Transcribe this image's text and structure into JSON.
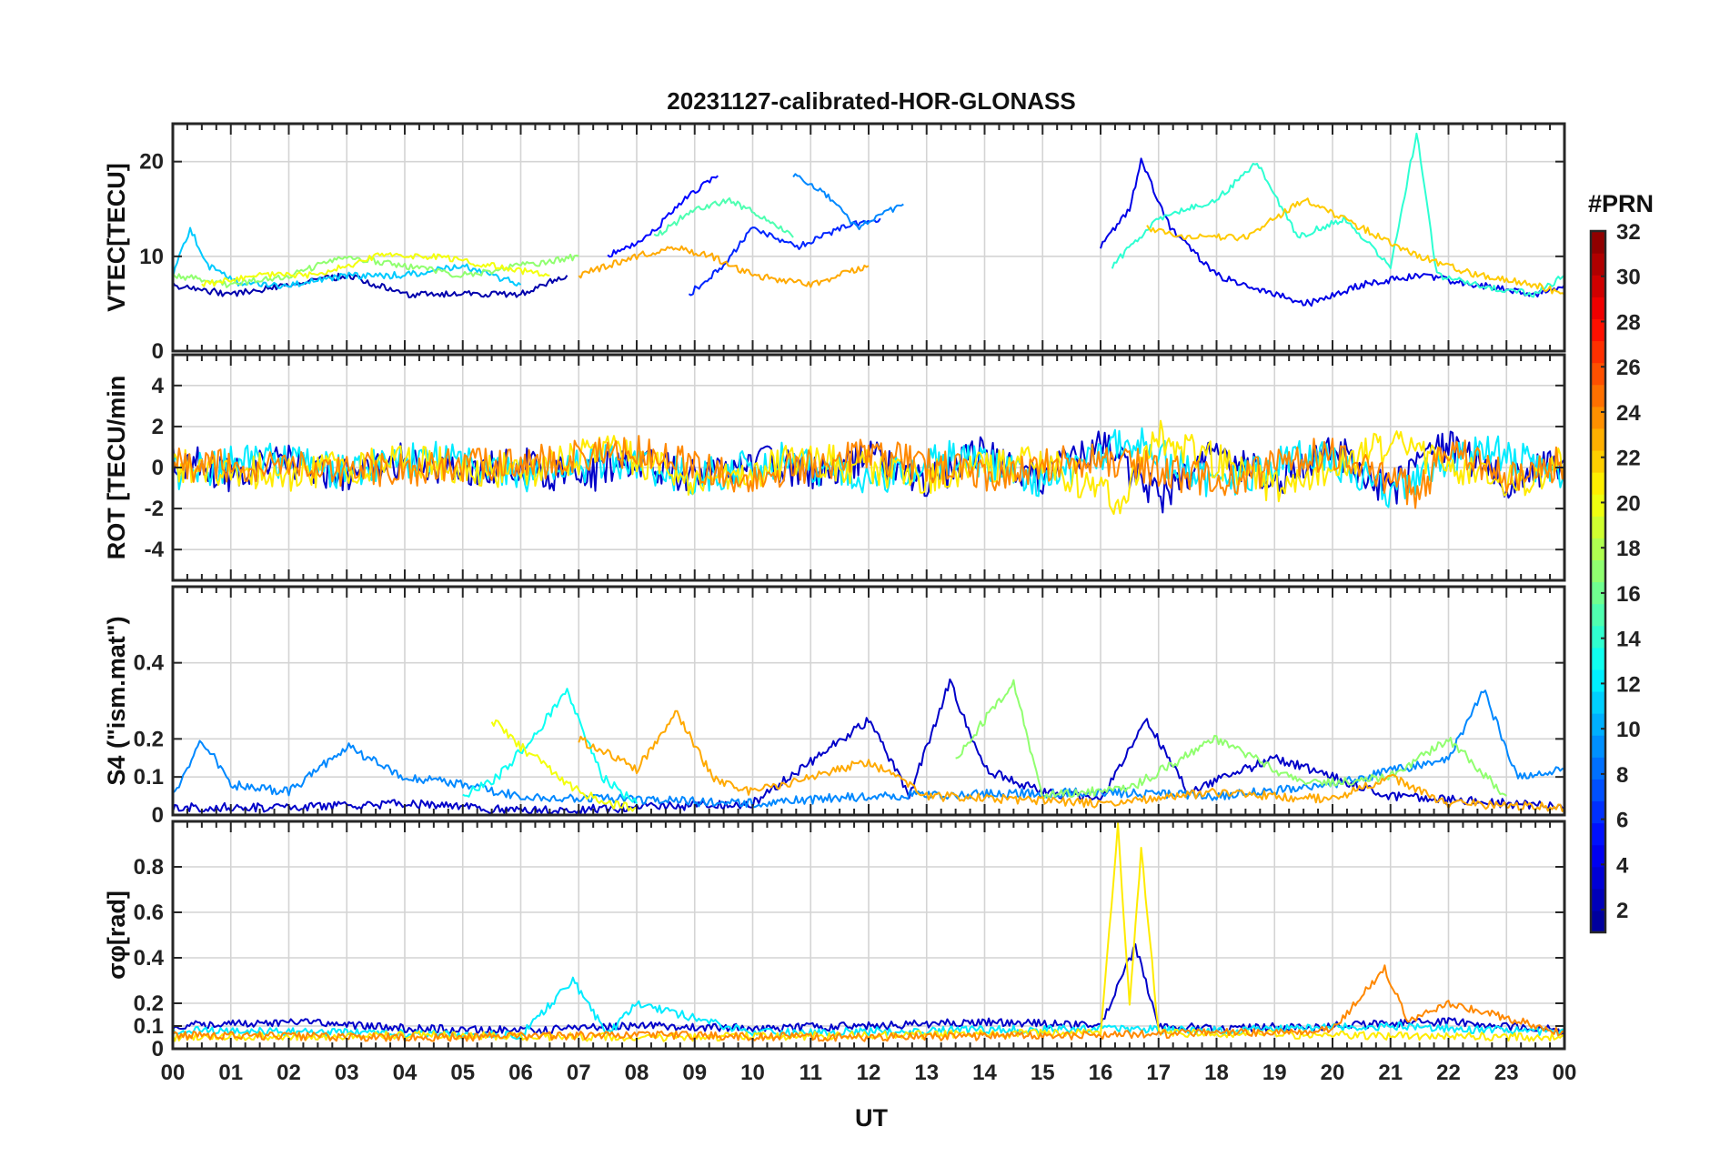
{
  "chart_data": {
    "type": "line",
    "title": "20231127-calibrated-HOR-GLONASS",
    "xlabel": "UT",
    "x_tick_labels": [
      "00",
      "01",
      "02",
      "03",
      "04",
      "05",
      "06",
      "07",
      "08",
      "09",
      "10",
      "11",
      "12",
      "13",
      "14",
      "15",
      "16",
      "17",
      "18",
      "19",
      "20",
      "21",
      "22",
      "23",
      "00"
    ],
    "xlim": [
      0,
      24
    ],
    "grid": true,
    "colorbar": {
      "title": "#PRN",
      "range": [
        1,
        32
      ],
      "tick_labels": [
        "2",
        "4",
        "6",
        "8",
        "10",
        "12",
        "14",
        "16",
        "18",
        "20",
        "22",
        "24",
        "26",
        "28",
        "30",
        "32"
      ],
      "colormap": [
        "#00008f",
        "#0000ff",
        "#0080ff",
        "#00ffff",
        "#80ff80",
        "#ffff00",
        "#ff8000",
        "#ff0000",
        "#800000"
      ]
    },
    "panels": [
      {
        "ylabel": "VTEC[TECU]",
        "ylim": [
          0,
          24
        ],
        "y_ticks": [
          0,
          10,
          20
        ],
        "y_tick_labels": [
          "0",
          "10",
          "20"
        ],
        "series": [
          {
            "prn": 2,
            "x": [
              0.0,
              1.0,
              2.0,
              3.0,
              4.0,
              5.0,
              6.0,
              6.8
            ],
            "y": [
              7,
              6,
              7,
              8,
              6,
              6,
              6,
              8
            ]
          },
          {
            "prn": 5,
            "x": [
              7.5,
              8.2,
              8.8,
              9.4
            ],
            "y": [
              10,
              12,
              16,
              18.5
            ]
          },
          {
            "prn": 6,
            "x": [
              8.9,
              9.5,
              10.0,
              10.8,
              11.5,
              12.2
            ],
            "y": [
              6,
              9,
              13,
              11,
              13,
              14
            ]
          },
          {
            "prn": 9,
            "x": [
              10.7,
              11.2,
              11.8,
              12.6
            ],
            "y": [
              18.5,
              17,
              13,
              15.5
            ]
          },
          {
            "prn": 11,
            "x": [
              0.0,
              0.3,
              0.6,
              1.2,
              2.0,
              3.0,
              4.0,
              5.0,
              6.0
            ],
            "y": [
              8,
              13,
              9,
              7,
              7,
              8,
              8,
              9,
              7
            ]
          },
          {
            "prn": 15,
            "x": [
              8.3,
              9.0,
              9.6,
              10.2,
              10.7
            ],
            "y": [
              12,
              15,
              16,
              14,
              12
            ]
          },
          {
            "prn": 17,
            "x": [
              0.0,
              1.0,
              2.0,
              3.0,
              4.0,
              5.0,
              6.0,
              7.0
            ],
            "y": [
              8,
              7,
              8,
              10,
              9,
              8,
              9,
              10
            ]
          },
          {
            "prn": 20,
            "x": [
              0.5,
              1.5,
              2.5,
              3.5,
              4.5,
              5.5,
              6.5
            ],
            "y": [
              7,
              8,
              8,
              10,
              10,
              9,
              8
            ]
          },
          {
            "prn": 23,
            "x": [
              7.0,
              7.5,
              8.0,
              8.6,
              9.3,
              10.0,
              11.0,
              12.0
            ],
            "y": [
              8,
              9,
              10,
              11,
              10,
              8,
              7,
              9
            ]
          },
          {
            "prn": 4,
            "x": [
              16.0,
              16.5,
              16.7,
              17.2,
              18.0,
              19.0,
              19.6,
              20.5,
              21.5,
              22.5,
              23.5,
              24.0
            ],
            "y": [
              11,
              15,
              20,
              13,
              8,
              6,
              5,
              7,
              8,
              7,
              6,
              7
            ]
          },
          {
            "prn": 14,
            "x": [
              16.2,
              17.0,
              18.0,
              18.7,
              19.4,
              20.2,
              21.0,
              21.45,
              21.8,
              22.5,
              23.5,
              24.0
            ],
            "y": [
              9,
              14,
              16,
              20,
              12,
              14,
              9,
              23,
              8,
              7,
              6,
              8
            ]
          },
          {
            "prn": 22,
            "x": [
              16.8,
              17.5,
              18.5,
              19.5,
              20.5,
              21.5,
              22.5,
              23.5,
              24.0
            ],
            "y": [
              13,
              12,
              12,
              16,
              13,
              10,
              8,
              7,
              6
            ]
          }
        ]
      },
      {
        "ylabel": "ROT [TECU/min",
        "ylim": [
          -5.5,
          5.5
        ],
        "y_ticks": [
          -4,
          -2,
          0,
          2,
          4
        ],
        "y_tick_labels": [
          "-4",
          "-2",
          "0",
          "2",
          "4"
        ],
        "series": [
          {
            "prn": 3,
            "x": [
              0.0,
              1.0,
              2.0,
              3.0,
              4.0,
              5.0,
              6.0,
              7.0,
              8.0,
              9.0,
              10.0,
              11.0,
              12.0,
              13.0,
              14.0,
              15.0,
              16.0,
              17.0,
              18.0,
              19.0,
              20.0,
              21.0,
              22.0,
              23.0,
              24.0
            ],
            "y": [
              0.5,
              -0.4,
              0.3,
              -0.5,
              0.4,
              -0.3,
              0.2,
              -0.6,
              0.4,
              -0.5,
              0.3,
              -0.2,
              0.5,
              -0.6,
              0.7,
              -0.4,
              1.2,
              -1.5,
              0.9,
              -0.8,
              1.0,
              -1.2,
              1.3,
              -0.9,
              0.4
            ]
          },
          {
            "prn": 12,
            "x": [
              0.0,
              1.5,
              3.0,
              4.5,
              6.0,
              7.5,
              9.0,
              10.5,
              12.0,
              13.5,
              15.0,
              16.5,
              18.0,
              19.5,
              21.0,
              22.5,
              24.0
            ],
            "y": [
              -0.3,
              0.4,
              -0.2,
              0.5,
              -0.4,
              0.3,
              -0.5,
              0.4,
              -0.6,
              0.5,
              -0.7,
              1.4,
              -1.0,
              0.8,
              -1.2,
              1.0,
              -0.3
            ]
          },
          {
            "prn": 21,
            "x": [
              0.0,
              2.0,
              4.0,
              6.0,
              7.5,
              9.0,
              11.0,
              13.0,
              15.0,
              16.3,
              17.0,
              19.0,
              21.0,
              23.0,
              24.0
            ],
            "y": [
              0.2,
              -0.3,
              0.3,
              -0.2,
              0.8,
              -0.6,
              0.4,
              -0.5,
              0.4,
              -1.8,
              1.5,
              -0.9,
              1.1,
              -0.8,
              0.2
            ]
          },
          {
            "prn": 24,
            "x": [
              0.0,
              3.0,
              6.0,
              8.0,
              10.0,
              12.0,
              14.0,
              16.0,
              18.0,
              20.0,
              21.5,
              22.0,
              23.0,
              24.0
            ],
            "y": [
              0.1,
              -0.2,
              0.2,
              0.7,
              -0.5,
              0.6,
              -0.4,
              0.5,
              -0.7,
              0.8,
              -1.3,
              1.2,
              -0.6,
              0.3
            ]
          }
        ]
      },
      {
        "ylabel": "S4 (\"ism.mat\")",
        "ylim": [
          0,
          0.6
        ],
        "y_ticks": [
          0,
          0.1,
          0.2,
          0.4
        ],
        "y_tick_labels": [
          "0",
          "0.1",
          "0.2",
          "0.4"
        ],
        "series": [
          {
            "prn": 3,
            "x": [
              0.0,
              2.0,
              4.0,
              6.0,
              8.0,
              10.0,
              12.0,
              12.7,
              13.4,
              14.0,
              15.0,
              16.0,
              16.8,
              17.5,
              19.0,
              21.0,
              23.0,
              24.0
            ],
            "y": [
              0.02,
              0.02,
              0.03,
              0.01,
              0.02,
              0.03,
              0.25,
              0.05,
              0.35,
              0.12,
              0.06,
              0.04,
              0.25,
              0.06,
              0.15,
              0.05,
              0.03,
              0.02
            ]
          },
          {
            "prn": 9,
            "x": [
              0.0,
              0.5,
              1.0,
              2.0,
              3.0,
              4.0,
              5.0,
              6.0,
              8.0,
              10.0,
              12.0,
              16.0,
              18.0,
              20.0,
              22.0,
              22.6,
              23.2,
              24.0
            ],
            "y": [
              0.05,
              0.2,
              0.08,
              0.06,
              0.18,
              0.1,
              0.08,
              0.05,
              0.04,
              0.03,
              0.05,
              0.06,
              0.05,
              0.08,
              0.15,
              0.33,
              0.1,
              0.12
            ]
          },
          {
            "prn": 13,
            "x": [
              5.0,
              5.6,
              6.2,
              6.8,
              7.4,
              8.0
            ],
            "y": [
              0.05,
              0.1,
              0.2,
              0.33,
              0.1,
              0.03
            ]
          },
          {
            "prn": 17,
            "x": [
              13.5,
              14.0,
              14.5,
              15.0,
              16.5,
              18.0,
              19.5,
              21.0,
              22.0,
              23.0
            ],
            "y": [
              0.15,
              0.25,
              0.35,
              0.05,
              0.07,
              0.2,
              0.08,
              0.1,
              0.2,
              0.05
            ]
          },
          {
            "prn": 20,
            "x": [
              5.5,
              6.0,
              6.5,
              7.0,
              7.5,
              8.0
            ],
            "y": [
              0.25,
              0.18,
              0.12,
              0.06,
              0.03,
              0.02
            ]
          },
          {
            "prn": 23,
            "x": [
              7.0,
              8.0,
              8.7,
              9.3,
              10.0,
              11.0,
              12.0,
              13.0,
              16.0,
              18.0,
              20.0,
              21.0,
              22.0,
              24.0
            ],
            "y": [
              0.2,
              0.12,
              0.27,
              0.1,
              0.06,
              0.1,
              0.14,
              0.05,
              0.03,
              0.06,
              0.04,
              0.1,
              0.03,
              0.02
            ]
          }
        ]
      },
      {
        "ylabel": "σφ[rad]",
        "ylim": [
          0,
          1.0
        ],
        "y_ticks": [
          0,
          0.1,
          0.2,
          0.4,
          0.6,
          0.8
        ],
        "y_tick_labels": [
          "0",
          "0.1",
          "0.2",
          "0.4",
          "0.6",
          "0.8"
        ],
        "series": [
          {
            "prn": 3,
            "x": [
              0.0,
              2.0,
              4.0,
              6.0,
              8.0,
              10.0,
              12.0,
              14.0,
              16.0,
              16.6,
              17.0,
              18.0,
              20.0,
              22.0,
              24.0
            ],
            "y": [
              0.1,
              0.12,
              0.09,
              0.08,
              0.1,
              0.09,
              0.1,
              0.12,
              0.1,
              0.45,
              0.1,
              0.09,
              0.1,
              0.12,
              0.08
            ]
          },
          {
            "prn": 12,
            "x": [
              0.0,
              3.0,
              6.0,
              6.9,
              7.5,
              8.0,
              10.0,
              13.0,
              16.0,
              18.0,
              21.0,
              24.0
            ],
            "y": [
              0.08,
              0.07,
              0.06,
              0.3,
              0.06,
              0.2,
              0.07,
              0.08,
              0.09,
              0.08,
              0.1,
              0.07
            ]
          },
          {
            "prn": 21,
            "x": [
              0.0,
              4.0,
              8.0,
              12.0,
              16.0,
              16.3,
              16.5,
              16.7,
              17.0,
              20.0,
              24.0
            ],
            "y": [
              0.05,
              0.06,
              0.05,
              0.06,
              0.07,
              0.98,
              0.2,
              0.88,
              0.07,
              0.06,
              0.05
            ]
          },
          {
            "prn": 24,
            "x": [
              0.0,
              4.0,
              8.0,
              12.0,
              16.0,
              20.0,
              20.9,
              21.3,
              22.0,
              24.0
            ],
            "y": [
              0.06,
              0.05,
              0.06,
              0.05,
              0.06,
              0.08,
              0.35,
              0.12,
              0.2,
              0.07
            ]
          }
        ]
      }
    ]
  }
}
